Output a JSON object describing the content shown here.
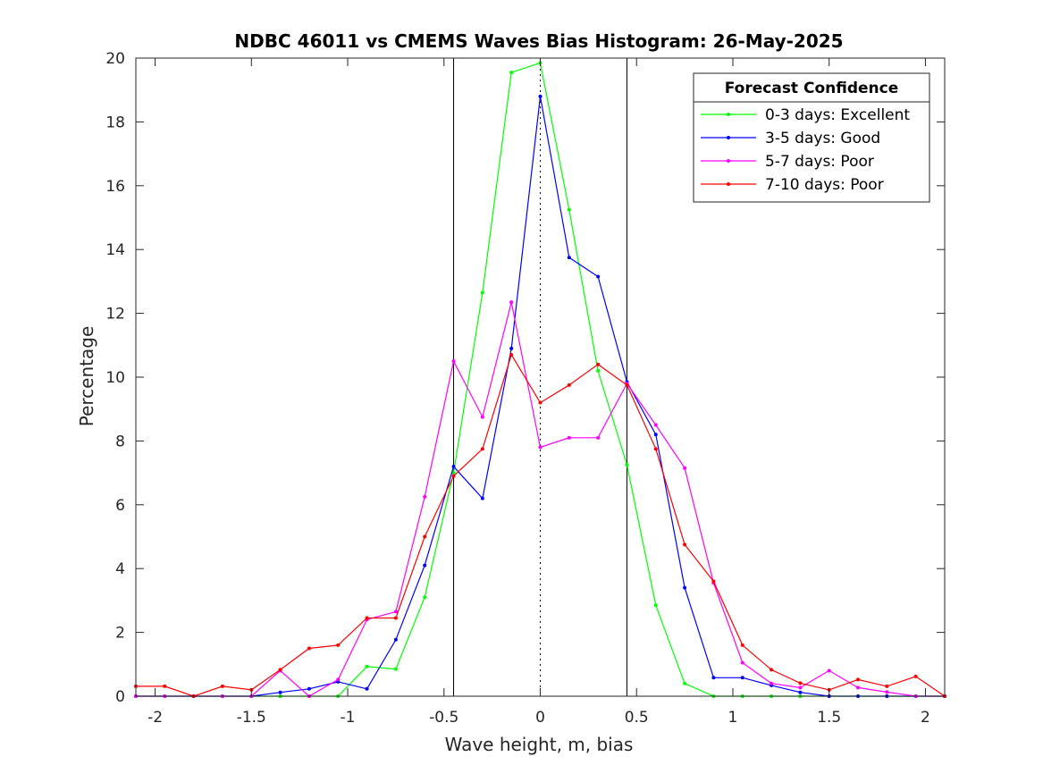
{
  "chart_data": {
    "type": "line",
    "title": "NDBC 46011 vs CMEMS Waves Bias Histogram: 26-May-2025",
    "xlabel": "Wave height, m, bias",
    "ylabel": "Percentage",
    "xlim": [
      -2.1,
      2.1
    ],
    "ylim": [
      0,
      20
    ],
    "xticks": [
      -2,
      -1.5,
      -1,
      -0.5,
      0,
      0.5,
      1,
      1.5,
      2
    ],
    "xtick_labels": [
      "-2",
      "-1.5",
      "-1",
      "-0.5",
      "0",
      "0.5",
      "1",
      "1.5",
      "2"
    ],
    "yticks": [
      0,
      2,
      4,
      6,
      8,
      10,
      12,
      14,
      16,
      18,
      20
    ],
    "ytick_labels": [
      "0",
      "2",
      "4",
      "6",
      "8",
      "10",
      "12",
      "14",
      "16",
      "18",
      "20"
    ],
    "grid": false,
    "legend_title": "Forecast Confidence",
    "legend_position": "top-right",
    "vertical_lines": [
      {
        "x": -0.45,
        "style": "solid",
        "color": "#000000"
      },
      {
        "x": 0,
        "style": "dotted",
        "color": "#000000"
      },
      {
        "x": 0.45,
        "style": "solid",
        "color": "#000000"
      }
    ],
    "x": [
      -2.1,
      -1.95,
      -1.8,
      -1.65,
      -1.5,
      -1.35,
      -1.2,
      -1.05,
      -0.9,
      -0.75,
      -0.6,
      -0.45,
      -0.3,
      -0.15,
      0,
      0.15,
      0.3,
      0.45,
      0.6,
      0.75,
      0.9,
      1.05,
      1.2,
      1.35,
      1.5,
      1.65,
      1.8,
      1.95,
      2.1
    ],
    "series": [
      {
        "name": "0-3 days: Excellent",
        "color": "#00ff00",
        "values": [
          0,
          0,
          0,
          0,
          0,
          0,
          0,
          0,
          0.93,
          0.85,
          3.1,
          7.0,
          12.65,
          19.55,
          19.85,
          15.25,
          10.2,
          7.25,
          2.85,
          0.4,
          0,
          0,
          0,
          0,
          0,
          0,
          0,
          0,
          0
        ]
      },
      {
        "name": "3-5 days: Good",
        "color": "#0000ff",
        "values": [
          0,
          0,
          0,
          0,
          0,
          0.12,
          0.23,
          0.45,
          0.23,
          1.77,
          4.1,
          7.2,
          6.2,
          10.9,
          18.8,
          13.75,
          13.15,
          9.85,
          8.2,
          3.4,
          0.58,
          0.58,
          0.34,
          0.12,
          0,
          0,
          0,
          0,
          0
        ]
      },
      {
        "name": "5-7 days: Poor",
        "color": "#ff00ff",
        "values": [
          0,
          0,
          0,
          0,
          0,
          0.8,
          0,
          0.52,
          2.4,
          2.65,
          6.25,
          10.5,
          8.75,
          12.35,
          7.8,
          8.1,
          8.1,
          9.8,
          8.5,
          7.15,
          3.55,
          1.05,
          0.4,
          0.27,
          0.8,
          0.27,
          0.13,
          0,
          0
        ]
      },
      {
        "name": "7-10 days: Poor",
        "color": "#ff0000",
        "values": [
          0.31,
          0.31,
          0,
          0.31,
          0.2,
          0.83,
          1.5,
          1.6,
          2.45,
          2.45,
          5.0,
          6.9,
          7.75,
          10.7,
          9.2,
          9.75,
          10.4,
          9.75,
          7.75,
          4.75,
          3.6,
          1.6,
          0.83,
          0.41,
          0.2,
          0.52,
          0.31,
          0.62,
          0
        ]
      }
    ]
  }
}
